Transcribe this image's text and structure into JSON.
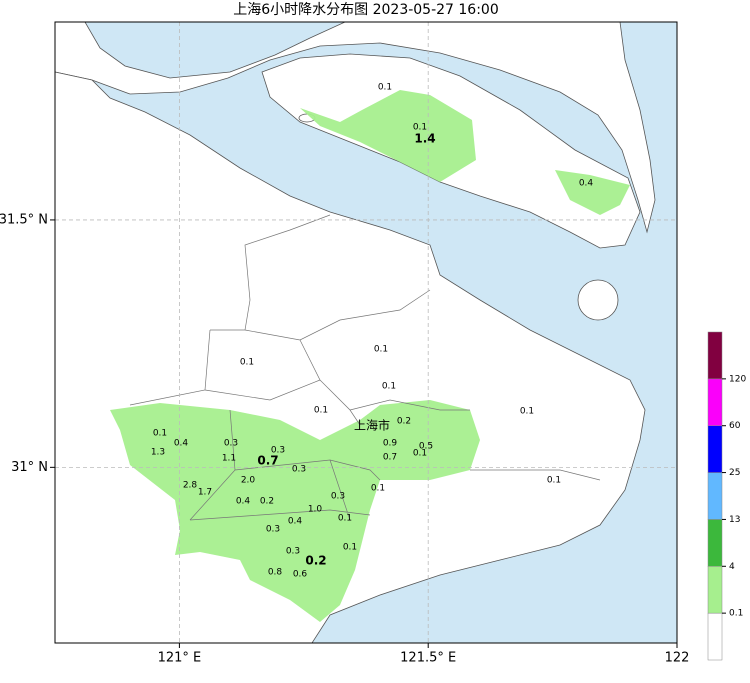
{
  "map": {
    "title": "上海6小时降水分布图 2023-05-27 16:00",
    "city": "上海市",
    "xticks": [
      {
        "value": 121,
        "label": "121° E"
      },
      {
        "value": 121.5,
        "label": "121.5° E"
      },
      122
    ],
    "yticks": [
      {
        "value": 31.5,
        "label": "31.5° N"
      },
      {
        "value": 31,
        "label": "31° N"
      }
    ],
    "xlim": [
      120.75,
      122
    ],
    "ylim": [
      30.645,
      31.9
    ],
    "grid": true,
    "sea_color": "#cfe7f5",
    "rain_color": "#a6ef8e",
    "values": [
      0.1,
      0.1,
      1.4,
      0.4,
      0.1,
      0.1,
      0.1,
      0.1,
      0.1,
      0.2,
      0.1,
      0.4,
      0.3,
      0.3,
      0.7,
      0.9,
      0.5,
      0.1,
      0.7,
      1.3,
      1.1,
      0.3,
      0.1,
      0.1,
      2.8,
      1.7,
      {
        "value": 2,
        "label": "2.0"
      },
      0.3,
      0.4,
      0.2,
      {
        "value": 1,
        "label": "1.0"
      },
      0.1,
      0.4,
      0.3,
      0.1,
      0.3,
      0.2,
      0.8,
      0.6
    ],
    "colorbar": {
      "ticks": [
        0.1,
        4,
        13,
        25,
        60,
        120
      ],
      "colors": [
        "#ffffff",
        "#a6ef8e",
        "#3cb83c",
        "#61b8ff",
        "#0000fe",
        "#fa00fa",
        "#810040"
      ]
    }
  }
}
